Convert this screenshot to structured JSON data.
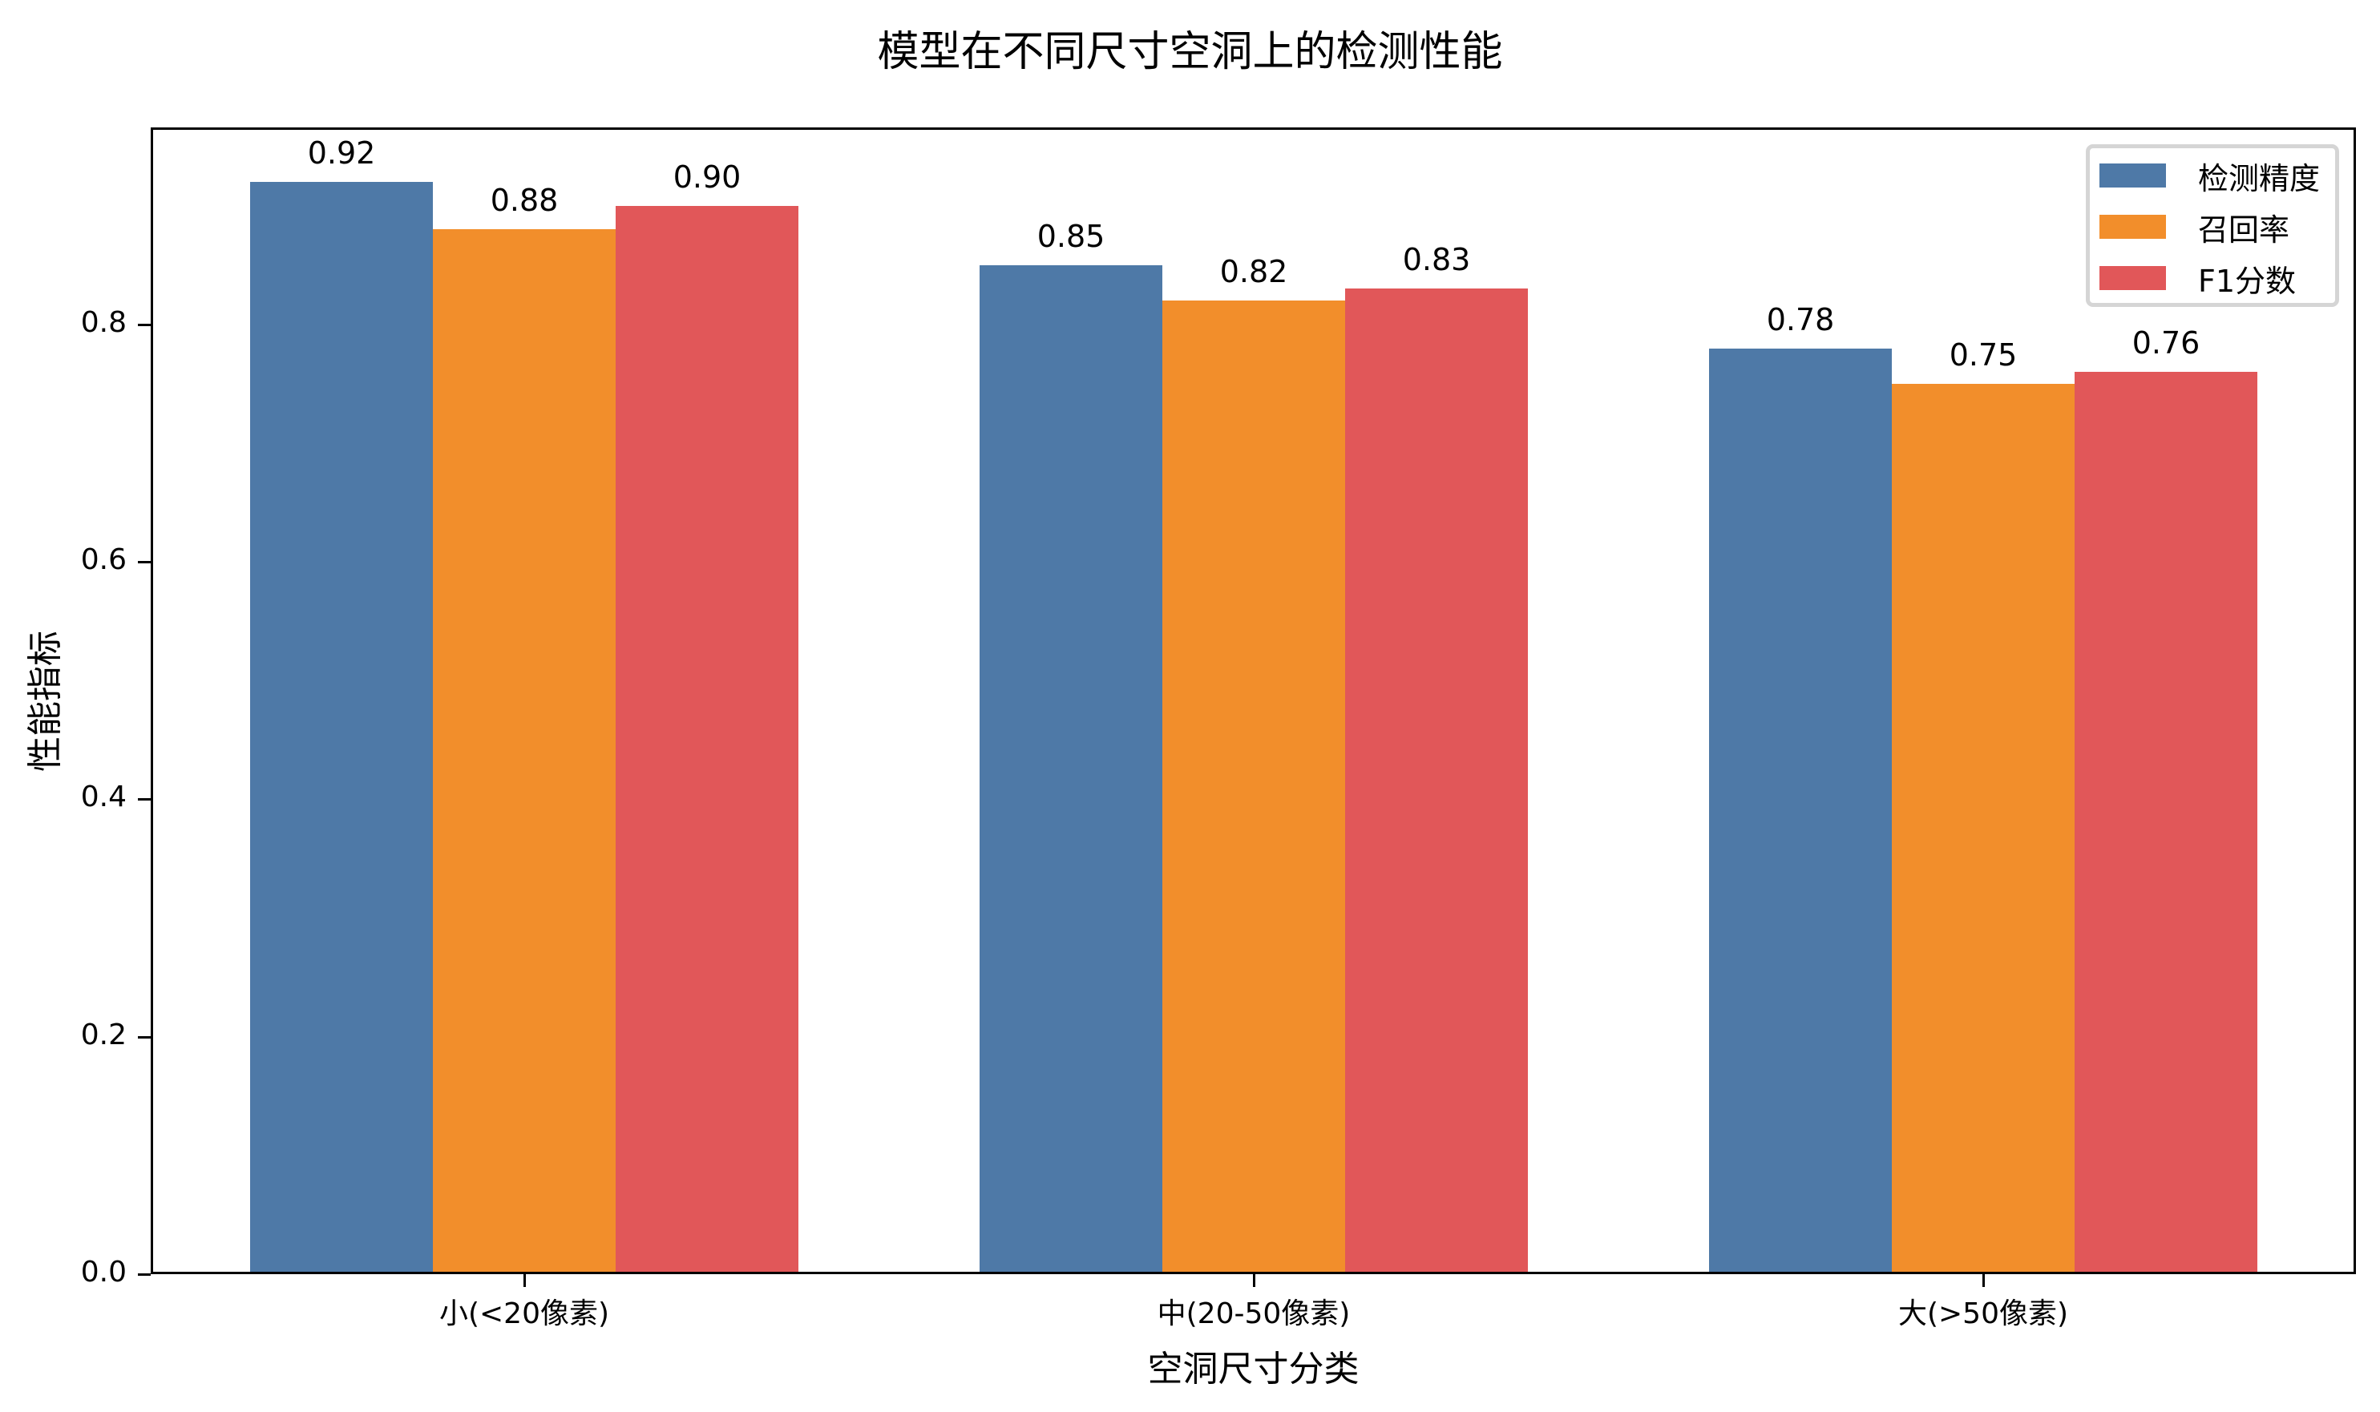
{
  "chart_data": {
    "type": "bar",
    "title": "模型在不同尺寸空洞上的检测性能",
    "xlabel": "空洞尺寸分类",
    "ylabel": "性能指标",
    "categories": [
      "小(<20像素)",
      "中(20-50像素)",
      "大(>50像素)"
    ],
    "series": [
      {
        "name": "检测精度",
        "color": "#4e79a7",
        "values": [
          0.92,
          0.85,
          0.78
        ]
      },
      {
        "name": "召回率",
        "color": "#f28e2b",
        "values": [
          0.88,
          0.82,
          0.75
        ]
      },
      {
        "name": "F1分数",
        "color": "#e15759",
        "values": [
          0.9,
          0.83,
          0.76
        ]
      }
    ],
    "value_labels": [
      [
        "0.92",
        "0.85",
        "0.78"
      ],
      [
        "0.88",
        "0.82",
        "0.75"
      ],
      [
        "0.90",
        "0.83",
        "0.76"
      ]
    ],
    "yticks": [
      "0.0",
      "0.2",
      "0.4",
      "0.6",
      "0.8"
    ],
    "ylim": [
      0,
      0.966
    ],
    "grid": false,
    "legend_position": "upper right"
  }
}
